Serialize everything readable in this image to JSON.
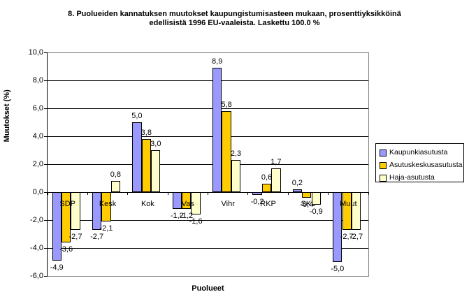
{
  "header": {
    "title_line1": "8. Puolueiden kannatuksen muutokset kaupungistumisasteen mukaan, prosenttiyksikköinä",
    "title_line2": "edellisistä 1996 EU-vaaleista. Laskettu 100.0 %"
  },
  "chart_data": {
    "type": "bar",
    "title": "8. Puolueiden kannatuksen muutokset kaupungistumisasteen mukaan, prosenttiyksikköinä edellisistä 1996 EU-vaaleista. Laskettu 100.0 %",
    "xlabel": "Puolueet",
    "ylabel": "Muutokset (%)",
    "categories": [
      "SDP",
      "Kesk",
      "Kok",
      "Vas",
      "Vihr",
      "RKP",
      "SKL",
      "Muut"
    ],
    "series": [
      {
        "name": "Kaupunkiasutusta",
        "color": "#9999FF",
        "values": [
          -4.9,
          -2.7,
          5.0,
          -1.2,
          8.9,
          -0.2,
          0.2,
          -5.0
        ]
      },
      {
        "name": "Asutuskeskusasutusta",
        "color": "#FFCC00",
        "values": [
          -3.6,
          -2.1,
          3.8,
          -1.2,
          5.8,
          0.6,
          -0.4,
          -2.7
        ]
      },
      {
        "name": "Haja-asutusta",
        "color": "#FFFFCC",
        "values": [
          -2.7,
          0.8,
          3.0,
          -1.6,
          2.3,
          1.7,
          -0.9,
          -2.7
        ]
      }
    ],
    "ylim": [
      -6.0,
      10.0
    ],
    "ytick_step": 2.0,
    "ytick_labels": [
      "10,0",
      "8,0",
      "6,0",
      "4,0",
      "2,0",
      "0,0",
      "-2,0",
      "-4,0",
      "-6,0"
    ],
    "grid": true,
    "decimal_separator": ",",
    "legend_position": "right",
    "value_labels_shown": true
  },
  "colors": {
    "background": "#FFFFFF",
    "gridline": "#000000",
    "plot_border": "#808080",
    "axis_line": "#000000",
    "text": "#000000"
  }
}
